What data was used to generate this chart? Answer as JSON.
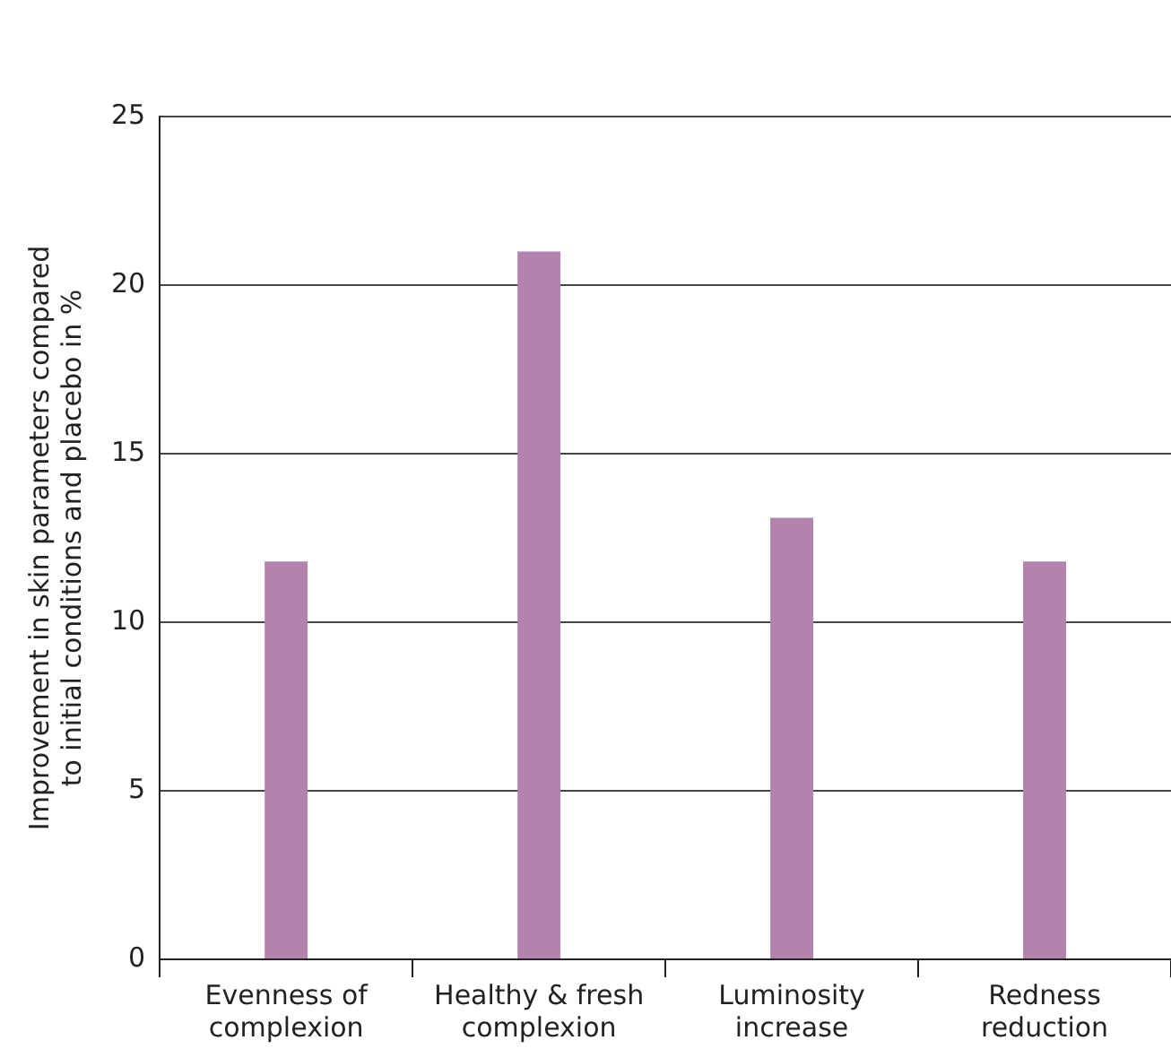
{
  "chart_data": {
    "type": "bar",
    "ylabel": "Improvement in skin parameters compared to initial conditions and placebo in %",
    "categories": [
      "Evenness of complexion",
      "Healthy & fresh complexion",
      "Luminosity increase",
      "Redness reduction"
    ],
    "series": [
      {
        "color": "#b283ad",
        "values": [
          11.8,
          21,
          13.1,
          11.8
        ]
      }
    ],
    "ylim": [
      0,
      25
    ],
    "yticks": [
      0,
      5,
      10,
      15,
      20,
      25
    ],
    "grid": "y",
    "legend": false
  }
}
